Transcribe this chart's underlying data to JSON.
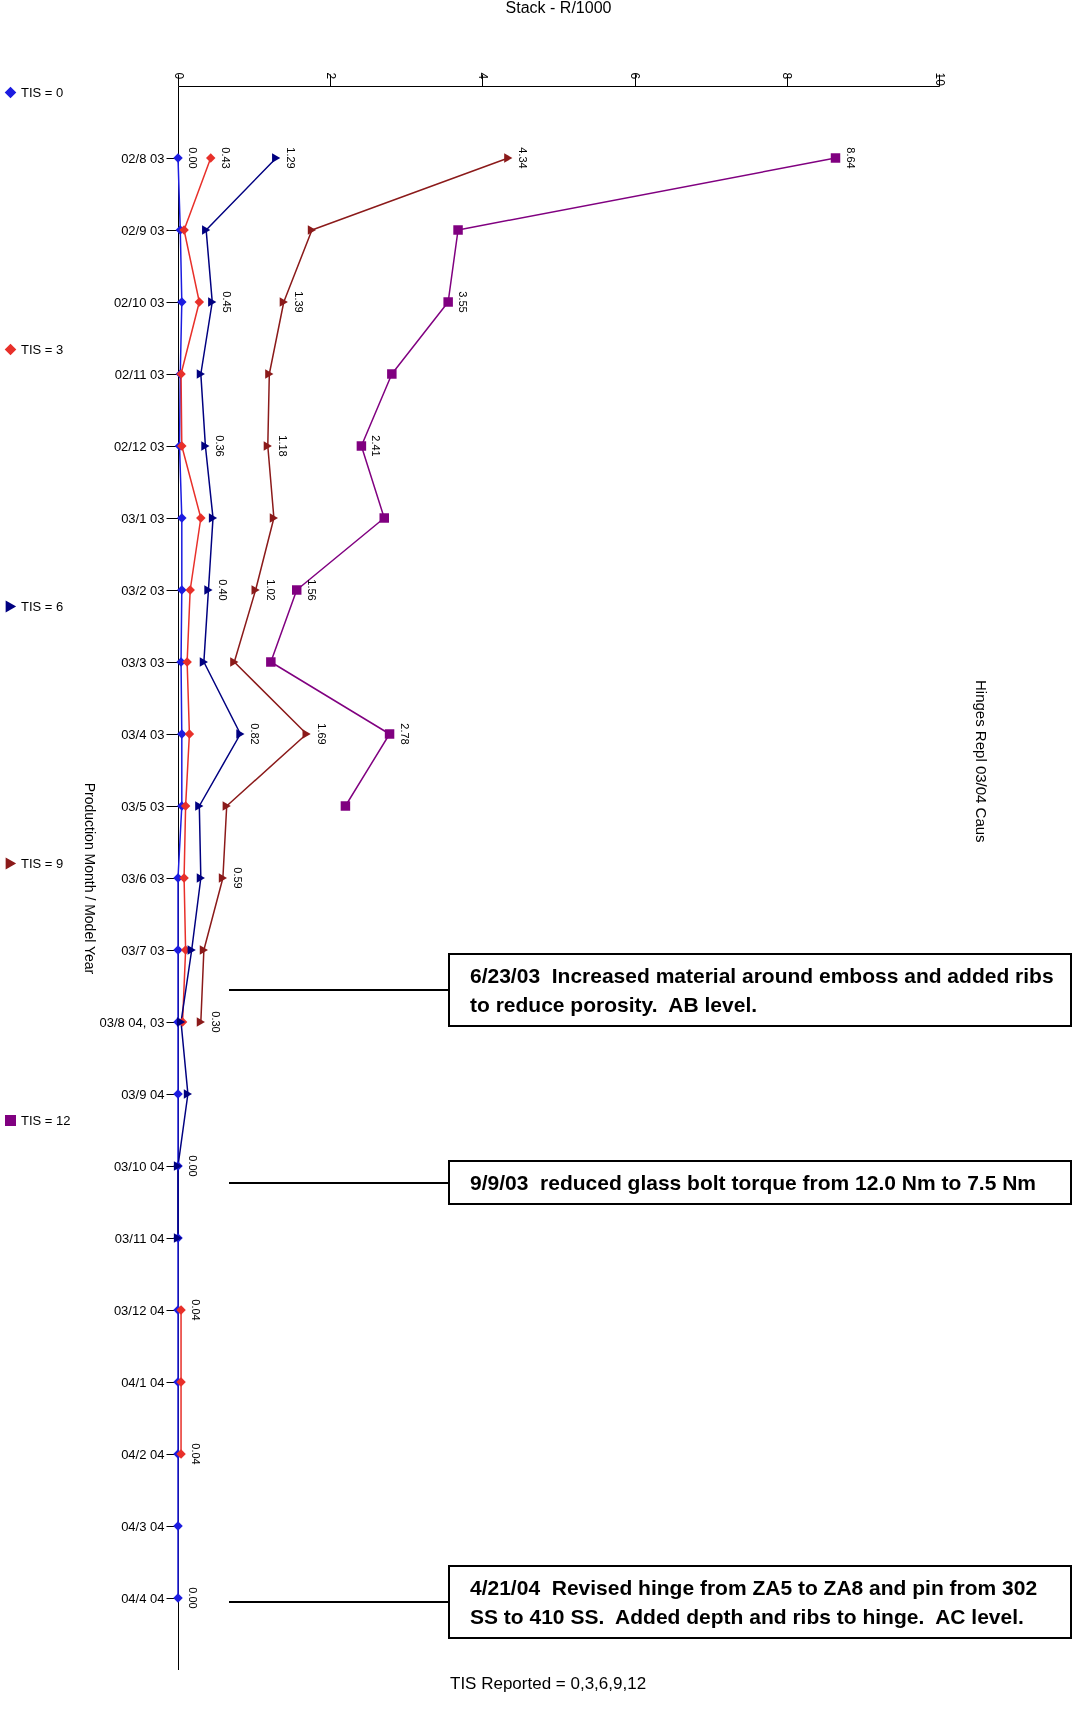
{
  "chart_data": {
    "type": "line",
    "title": "Stack - R/1000",
    "ylabel": "Production Month / Model Year",
    "orientation": "horizontal",
    "categories": [
      "02/8  03",
      "02/9  03",
      "02/10  03",
      "02/11  03",
      "02/12  03",
      "03/1  03",
      "03/2  03",
      "03/3  03",
      "03/4  03",
      "03/5  03",
      "03/6  03",
      "03/7  03",
      "03/8  04, 03",
      "03/9  04",
      "03/10  04",
      "03/11  04",
      "03/12  04",
      "04/1  04",
      "04/2  04",
      "04/3  04",
      "04/4  04"
    ],
    "xlim": [
      0,
      10
    ],
    "xticks": [
      0,
      2,
      4,
      6,
      8,
      10
    ],
    "grid": false,
    "legend": "left",
    "series": [
      {
        "name": "TIS = 0",
        "color": "#1c1ce0",
        "marker": "diamond",
        "values": [
          0.0,
          0.03,
          0.05,
          0.03,
          0.02,
          0.05,
          0.05,
          0.04,
          0.05,
          0.05,
          0.0,
          0.0,
          0.0,
          0.0,
          0.0,
          0.0,
          0.0,
          0.0,
          0.0,
          0.0,
          0.0
        ],
        "value_labels": [
          "0.00",
          null,
          null,
          null,
          null,
          null,
          null,
          null,
          null,
          null,
          null,
          null,
          null,
          null,
          null,
          null,
          null,
          null,
          null,
          null,
          "0.00"
        ]
      },
      {
        "name": "TIS = 3",
        "color": "#e8302a",
        "marker": "diamond",
        "values": [
          0.43,
          0.08,
          0.28,
          0.04,
          0.05,
          0.3,
          0.16,
          0.12,
          0.15,
          0.1,
          0.08,
          0.1,
          0.06,
          null,
          null,
          null,
          0.04,
          0.04,
          0.04,
          null,
          null
        ],
        "value_labels": [
          "0.43",
          null,
          null,
          null,
          null,
          null,
          null,
          null,
          null,
          null,
          null,
          null,
          null,
          null,
          null,
          null,
          "0.04",
          null,
          "0.04",
          null,
          null
        ]
      },
      {
        "name": "TIS = 6",
        "color": "#000080",
        "marker": "triangle",
        "values": [
          1.29,
          0.37,
          0.45,
          0.3,
          0.36,
          0.46,
          0.4,
          0.34,
          0.82,
          0.28,
          0.3,
          0.18,
          0.04,
          0.13,
          0.0,
          0.0,
          null,
          null,
          null,
          null,
          null
        ],
        "value_labels": [
          "1.29",
          null,
          "0.45",
          null,
          "0.36",
          null,
          "0.40",
          null,
          "0.82",
          null,
          null,
          null,
          null,
          null,
          "0.00",
          null,
          null,
          null,
          null,
          null,
          null
        ]
      },
      {
        "name": "TIS = 9",
        "color": "#8b1a1a",
        "marker": "triangle",
        "values": [
          4.34,
          1.76,
          1.39,
          1.2,
          1.18,
          1.26,
          1.02,
          0.74,
          1.69,
          0.64,
          0.59,
          0.34,
          0.3,
          null,
          null,
          null,
          null,
          null,
          null,
          null,
          null
        ],
        "value_labels": [
          "4.34",
          null,
          "1.39",
          null,
          "1.18",
          null,
          "1.02",
          null,
          "1.69",
          null,
          "0.59",
          null,
          "0.30",
          null,
          null,
          null,
          null,
          null,
          null,
          null,
          null
        ]
      },
      {
        "name": "TIS = 12",
        "color": "#800080",
        "marker": "square",
        "values": [
          8.64,
          3.68,
          3.55,
          2.81,
          2.41,
          2.71,
          1.56,
          1.22,
          2.78,
          2.2,
          null,
          null,
          null,
          null,
          null,
          null,
          null,
          null,
          null,
          null,
          null
        ],
        "value_labels": [
          "8.64",
          null,
          "3.55",
          null,
          "2.41",
          null,
          "1.56",
          null,
          "2.78",
          null,
          null,
          null,
          null,
          null,
          null,
          null,
          null,
          null,
          null,
          null,
          null
        ]
      }
    ],
    "annotations": [
      "TIS Reported = 0,3,6,9,12",
      "Hinges Repl 03/04 Caus",
      "6/23/03  Increased material around emboss and added ribs to reduce porosity.  AB level.",
      "9/9/03  reduced glass bolt torque from 12.0 Nm to 7.5 Nm",
      "4/21/04  Revised hinge from ZA5 to ZA8 and pin from 302 SS to 410 SS.  Added depth and ribs to hinge.  AC level."
    ]
  }
}
